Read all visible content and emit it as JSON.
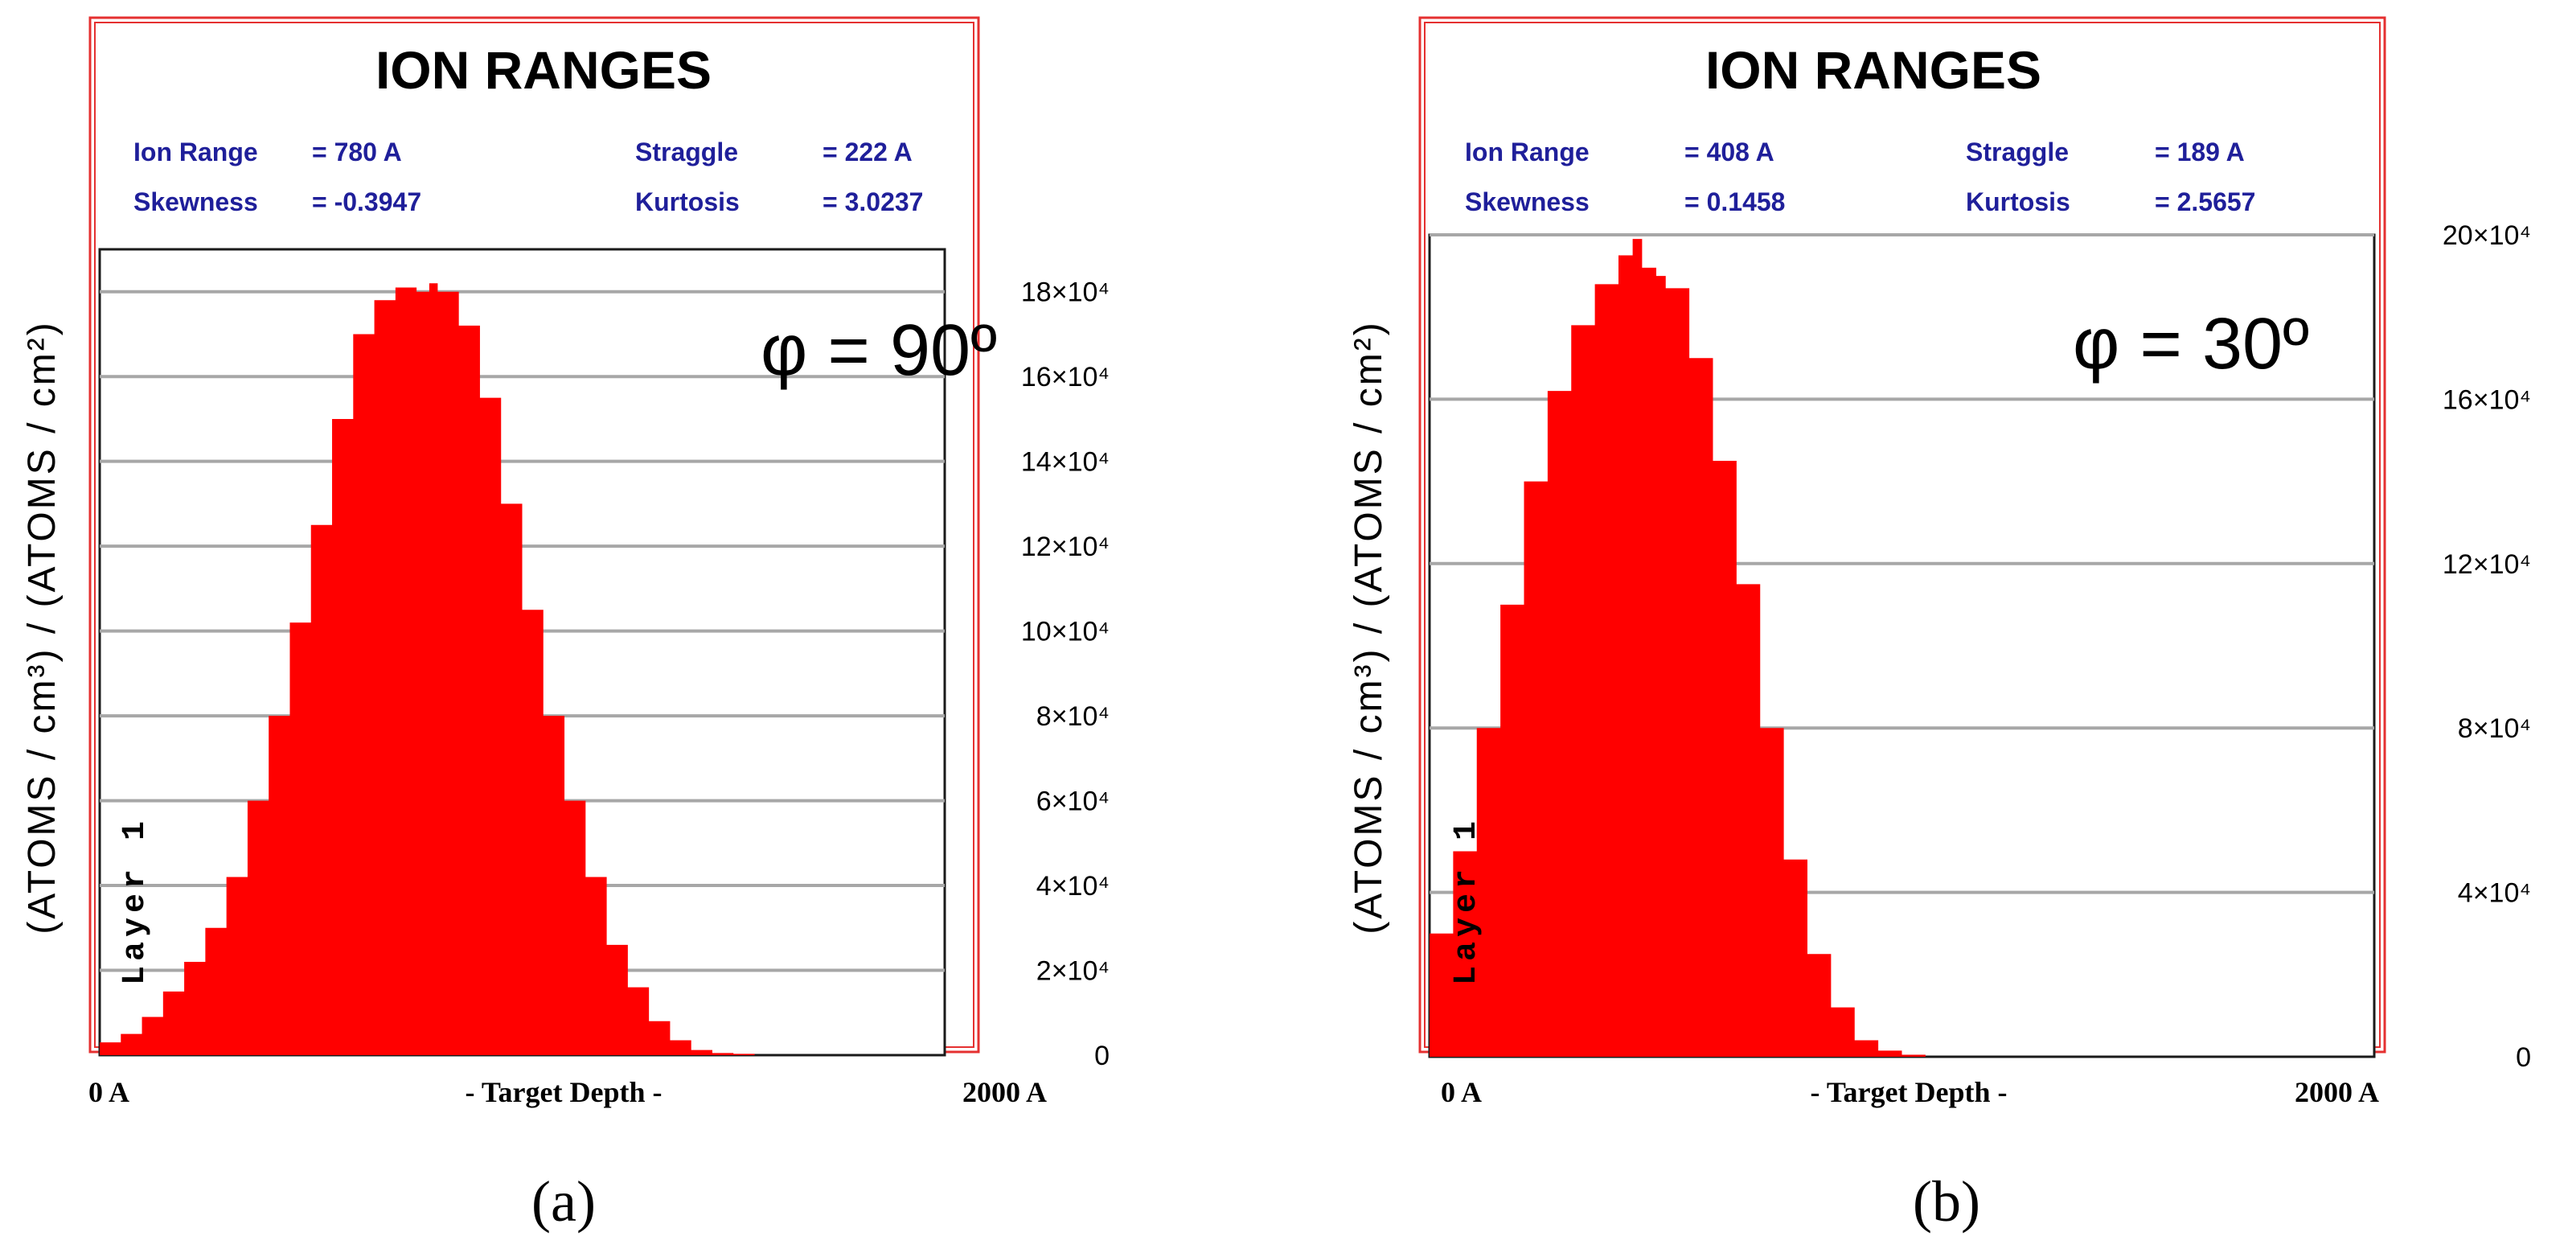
{
  "chart_data": [
    {
      "type": "area",
      "title": "ION RANGES",
      "panel_label": "(a)",
      "angle_label": "φ = 90º",
      "stats": [
        {
          "label": "Ion Range",
          "value": "=   780 A"
        },
        {
          "label": "Straggle",
          "value": "=   222 A"
        },
        {
          "label": "Skewness",
          "value": "= -0.3947"
        },
        {
          "label": "Kurtosis",
          "value": "= 3.0237"
        }
      ],
      "ylabel": "(ATOMS / cm³) / (ATOMS / cm²)",
      "layer_label": "Layer 1",
      "xlabel": "- Target Depth -",
      "xlim": [
        0,
        2000
      ],
      "x_ticks": [
        "0 A",
        "2000 A"
      ],
      "ylim": [
        0,
        190000
      ],
      "y_ticks": [
        {
          "value": 0,
          "label": "0"
        },
        {
          "value": 20000,
          "label": "2×10⁴"
        },
        {
          "value": 40000,
          "label": "4×10⁴"
        },
        {
          "value": 60000,
          "label": "6×10⁴"
        },
        {
          "value": 80000,
          "label": "8×10⁴"
        },
        {
          "value": 100000,
          "label": "10×10⁴"
        },
        {
          "value": 120000,
          "label": "12×10⁴"
        },
        {
          "value": 140000,
          "label": "14×10⁴"
        },
        {
          "value": 160000,
          "label": "16×10⁴"
        },
        {
          "value": 180000,
          "label": "18×10⁴"
        }
      ],
      "gridlines": [
        20000,
        40000,
        60000,
        80000,
        100000,
        120000,
        140000,
        160000,
        180000
      ],
      "series": [
        {
          "name": "Layer 1",
          "x": [
            0,
            50,
            100,
            150,
            200,
            250,
            300,
            350,
            400,
            450,
            500,
            550,
            600,
            650,
            700,
            750,
            780,
            800,
            850,
            900,
            950,
            1000,
            1050,
            1100,
            1150,
            1200,
            1250,
            1300,
            1350,
            1400,
            1450,
            1500,
            1550,
            1600,
            1650,
            1700,
            1750,
            1800,
            1850,
            1900,
            1950,
            2000
          ],
          "values": [
            3000,
            5000,
            9000,
            15000,
            22000,
            30000,
            42000,
            60000,
            80000,
            102000,
            125000,
            150000,
            170000,
            178000,
            181000,
            180000,
            182000,
            180000,
            172000,
            155000,
            130000,
            105000,
            80000,
            60000,
            42000,
            26000,
            16000,
            8000,
            3500,
            1200,
            500,
            300,
            0,
            0,
            0,
            0,
            0,
            0,
            0,
            0,
            0,
            0
          ]
        }
      ]
    },
    {
      "type": "area",
      "title": "ION RANGES",
      "panel_label": "(b)",
      "angle_label": "φ = 30º",
      "stats": [
        {
          "label": "Ion Range",
          "value": "=   408 A"
        },
        {
          "label": "Straggle",
          "value": "=   189 A"
        },
        {
          "label": "Skewness",
          "value": "= 0.1458"
        },
        {
          "label": "Kurtosis",
          "value": "= 2.5657"
        }
      ],
      "ylabel": "(ATOMS / cm³) / (ATOMS / cm²)",
      "layer_label": "Layer 1",
      "xlabel": "- Target Depth -",
      "xlim": [
        0,
        2000
      ],
      "x_ticks": [
        "0 A",
        "2000 A"
      ],
      "ylim": [
        0,
        200000
      ],
      "y_ticks": [
        {
          "value": 0,
          "label": "0"
        },
        {
          "value": 40000,
          "label": "4×10⁴"
        },
        {
          "value": 80000,
          "label": "8×10⁴"
        },
        {
          "value": 120000,
          "label": "12×10⁴"
        },
        {
          "value": 160000,
          "label": "16×10⁴"
        },
        {
          "value": 200000,
          "label": "20×10⁴"
        }
      ],
      "gridlines": [
        40000,
        80000,
        120000,
        160000,
        200000
      ],
      "series": [
        {
          "name": "Layer 1",
          "x": [
            0,
            50,
            100,
            150,
            200,
            250,
            300,
            350,
            400,
            430,
            450,
            480,
            500,
            550,
            600,
            650,
            700,
            750,
            800,
            850,
            900,
            950,
            1000,
            1050,
            1100,
            1150,
            1200,
            1250,
            1300,
            1350,
            1400,
            1450,
            1500,
            1550,
            1600,
            1650,
            1700,
            1750,
            1800,
            1850,
            1900,
            1950,
            2000
          ],
          "values": [
            30000,
            50000,
            80000,
            110000,
            140000,
            162000,
            178000,
            188000,
            195000,
            199000,
            192000,
            190000,
            187000,
            170000,
            145000,
            115000,
            80000,
            48000,
            25000,
            12000,
            4000,
            1500,
            500,
            0,
            0,
            0,
            0,
            0,
            0,
            0,
            0,
            0,
            0,
            0,
            0,
            0,
            0,
            0,
            0,
            0,
            0,
            0,
            0
          ]
        }
      ]
    }
  ]
}
